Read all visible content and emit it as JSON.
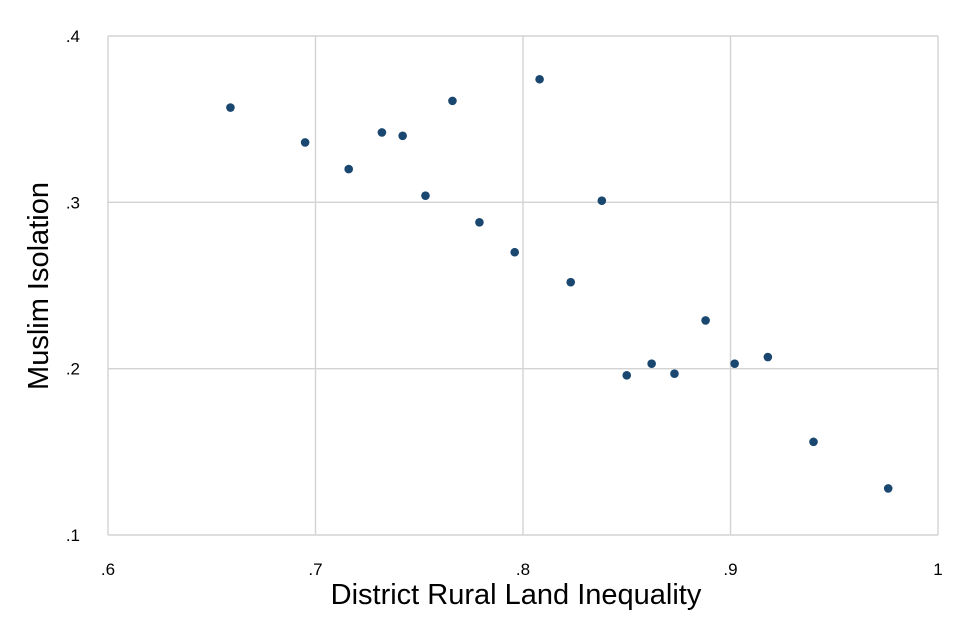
{
  "chart_data": {
    "type": "scatter",
    "title": "",
    "xlabel": "District Rural Land Inequality",
    "ylabel": "Muslim Isolation",
    "xlim": [
      0.6,
      1.0
    ],
    "ylim": [
      0.1,
      0.4
    ],
    "x_ticks": [
      0.6,
      0.7,
      0.8,
      0.9,
      1.0
    ],
    "x_tick_labels": [
      ".6",
      ".7",
      ".8",
      ".9",
      "1"
    ],
    "y_ticks": [
      0.1,
      0.2,
      0.3,
      0.4
    ],
    "y_tick_labels": [
      ".1",
      ".2",
      ".3",
      ".4"
    ],
    "grid": true,
    "marker_color": "#1a476f",
    "grid_color": "#d3d3d3",
    "points": [
      {
        "x": 0.659,
        "y": 0.357
      },
      {
        "x": 0.695,
        "y": 0.336
      },
      {
        "x": 0.716,
        "y": 0.32
      },
      {
        "x": 0.732,
        "y": 0.342
      },
      {
        "x": 0.742,
        "y": 0.34
      },
      {
        "x": 0.753,
        "y": 0.304
      },
      {
        "x": 0.766,
        "y": 0.361
      },
      {
        "x": 0.779,
        "y": 0.288
      },
      {
        "x": 0.796,
        "y": 0.27
      },
      {
        "x": 0.808,
        "y": 0.374
      },
      {
        "x": 0.823,
        "y": 0.252
      },
      {
        "x": 0.838,
        "y": 0.301
      },
      {
        "x": 0.85,
        "y": 0.196
      },
      {
        "x": 0.862,
        "y": 0.203
      },
      {
        "x": 0.873,
        "y": 0.197
      },
      {
        "x": 0.888,
        "y": 0.229
      },
      {
        "x": 0.902,
        "y": 0.203
      },
      {
        "x": 0.918,
        "y": 0.207
      },
      {
        "x": 0.94,
        "y": 0.156
      },
      {
        "x": 0.976,
        "y": 0.128
      }
    ]
  }
}
